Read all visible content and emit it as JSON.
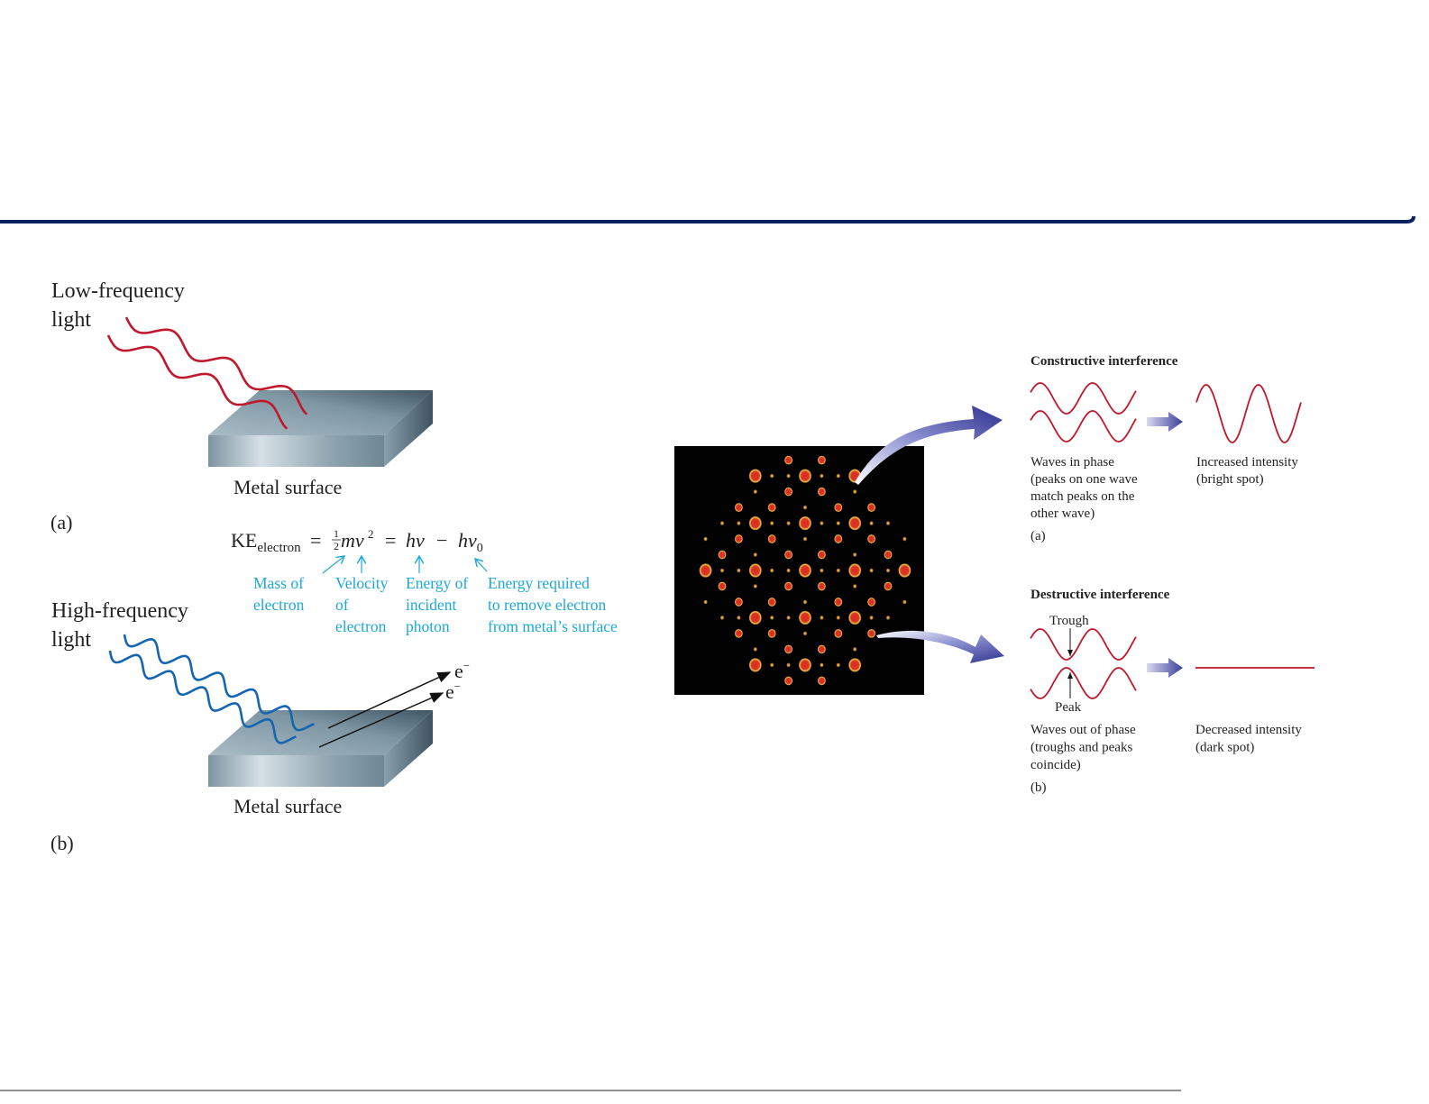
{
  "colors": {
    "rule": "#0b2260",
    "low_light": "#c0182c",
    "high_light": "#1565b0",
    "annotation": "#1ea8d8",
    "wave": "#c0182c",
    "arrow": "#3c3f9a"
  },
  "photoelectric": {
    "low_label": [
      "Low-frequency",
      "light"
    ],
    "metal_label_a": "Metal surface",
    "panel_a": "(a)",
    "equation": {
      "ke": "KE",
      "ke_sub": "electron",
      "eq1": "=",
      "half_num": "1",
      "half_den": "2",
      "mv": "mv",
      "sq": "2",
      "eq2": "=",
      "hv": "hν",
      "minus": "−",
      "hv0": "hν",
      "hv0_sub": "0"
    },
    "annotations": [
      {
        "lines": [
          "Mass of",
          "electron"
        ]
      },
      {
        "lines": [
          "Velocity",
          "of",
          "electron"
        ]
      },
      {
        "lines": [
          "Energy of",
          "incident",
          "photon"
        ]
      },
      {
        "lines": [
          "Energy required",
          "to remove electron",
          "from metal’s surface"
        ]
      }
    ],
    "high_label": [
      "High-frequency",
      "light"
    ],
    "electron_label": "e",
    "electron_charge": "−",
    "metal_label_b": "Metal surface",
    "panel_b": "(b)"
  },
  "interference": {
    "constructive": {
      "title": "Constructive interference",
      "left_caption": [
        "Waves in phase",
        "(peaks on one wave",
        "match peaks on the",
        "other wave)"
      ],
      "right_caption": [
        "Increased intensity",
        "(bright spot)"
      ],
      "panel": "(a)"
    },
    "destructive": {
      "title": "Destructive interference",
      "trough": "Trough",
      "peak": "Peak",
      "left_caption": [
        "Waves out of phase",
        "(troughs and peaks",
        "coincide)"
      ],
      "right_caption": [
        "Decreased intensity",
        "(dark spot)"
      ],
      "panel": "(b)"
    }
  }
}
